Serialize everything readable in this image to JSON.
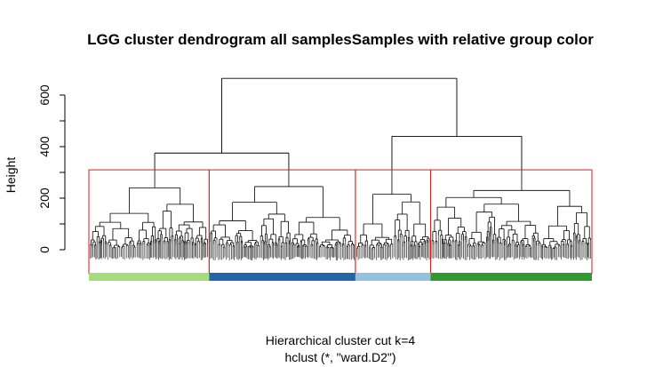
{
  "chart_data": {
    "type": "dendrogram",
    "title": "LGG cluster dendrogram all samplesSamples with relative group color",
    "xlabel": "Hierarchical cluster cut k=4",
    "sub": "hclust (*, \"ward.D2\")",
    "ylabel": "Height",
    "ylim": [
      0,
      700
    ],
    "yticks": [
      0,
      200,
      400,
      600
    ],
    "cut_k": 4,
    "cut_height": 310,
    "root_height": 665,
    "colors": {
      "branch": "#000000",
      "cut_box": "#e31a1c",
      "leaf_bars": "#555555"
    },
    "merges": [
      {
        "id": "root",
        "height": 665,
        "children": [
          "L",
          "R"
        ]
      },
      {
        "id": "L",
        "height": 375,
        "children": [
          "c1",
          "c2"
        ]
      },
      {
        "id": "R",
        "height": 440,
        "children": [
          "c3",
          "c4"
        ]
      }
    ],
    "clusters": [
      {
        "id": "c1",
        "color": "#a6dc7a",
        "height": 310,
        "size": 88,
        "sub_height": 240
      },
      {
        "id": "c2",
        "color": "#2066a8",
        "height": 310,
        "size": 107,
        "sub_height": 245
      },
      {
        "id": "c3",
        "color": "#94c2de",
        "height": 310,
        "size": 55,
        "sub_height": 215
      },
      {
        "id": "c4",
        "color": "#30992f",
        "height": 310,
        "size": 118,
        "sub_height": 230
      }
    ]
  }
}
